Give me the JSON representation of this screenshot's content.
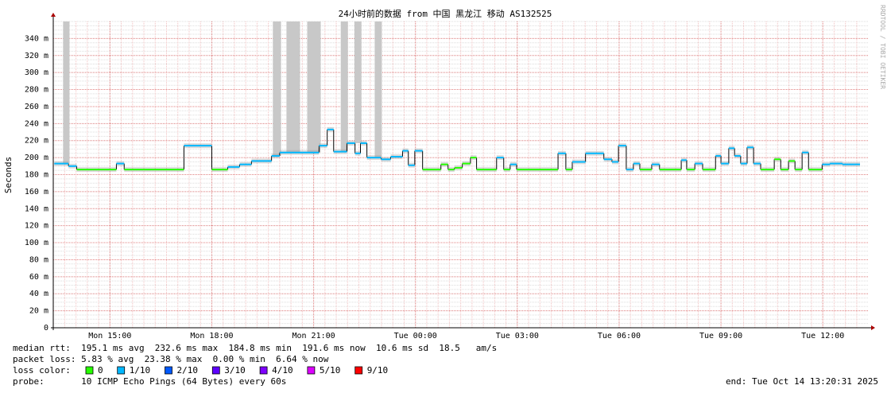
{
  "chart_data": {
    "type": "line",
    "title": "24小时前的数据 from 中国 黑龙江 移动 AS132525",
    "y_label": "Seconds",
    "watermark": "RRDTOOL / TOBI OETIKER",
    "xlim": [
      13.33,
      37.33
    ],
    "xticks": [
      {
        "value": 15,
        "label": "Mon 15:00"
      },
      {
        "value": 18,
        "label": "Mon 18:00"
      },
      {
        "value": 21,
        "label": "Mon 21:00"
      },
      {
        "value": 24,
        "label": "Tue 00:00"
      },
      {
        "value": 27,
        "label": "Tue 03:00"
      },
      {
        "value": 30,
        "label": "Tue 06:00"
      },
      {
        "value": 33,
        "label": "Tue 09:00"
      },
      {
        "value": 36,
        "label": "Tue 12:00"
      }
    ],
    "ylim": [
      0,
      360
    ],
    "yticks": [
      0,
      {
        "value": 20,
        "label": "20 m"
      },
      {
        "value": 40,
        "label": "40 m"
      },
      {
        "value": 60,
        "label": "60 m"
      },
      {
        "value": 80,
        "label": "80 m"
      },
      {
        "value": 100,
        "label": "100 m"
      },
      {
        "value": 120,
        "label": "120 m"
      },
      {
        "value": 140,
        "label": "140 m"
      },
      {
        "value": 160,
        "label": "160 m"
      },
      {
        "value": 180,
        "label": "180 m"
      },
      {
        "value": 200,
        "label": "200 m"
      },
      {
        "value": 220,
        "label": "220 m"
      },
      {
        "value": 240,
        "label": "240 m"
      },
      {
        "value": 260,
        "label": "260 m"
      },
      {
        "value": 280,
        "label": "280 m"
      },
      {
        "value": 300,
        "label": "300 m"
      },
      {
        "value": 320,
        "label": "320 m"
      },
      {
        "value": 340,
        "label": "340 m"
      }
    ],
    "grid": true,
    "x": [
      13.36,
      13.78,
      14.02,
      15.19,
      15.42,
      17.18,
      18.0,
      18.47,
      18.82,
      19.17,
      19.76,
      20.0,
      21.16,
      21.4,
      21.59,
      21.98,
      22.22,
      22.38,
      22.57,
      22.99,
      23.27,
      23.62,
      23.79,
      23.98,
      24.21,
      24.75,
      24.96,
      25.15,
      25.38,
      25.62,
      25.8,
      26.39,
      26.6,
      26.79,
      26.98,
      28.2,
      28.43,
      28.62,
      29.01,
      29.55,
      29.79,
      29.98,
      30.21,
      30.42,
      30.61,
      30.96,
      31.19,
      31.83,
      31.99,
      32.23,
      32.46,
      32.84,
      33.0,
      33.23,
      33.4,
      33.58,
      33.77,
      33.96,
      34.17,
      34.57,
      34.76,
      34.99,
      35.18,
      35.39,
      35.58,
      35.98,
      36.21,
      36.58
    ],
    "series": [
      {
        "name": "median rtt",
        "values": [
          193,
          190,
          186,
          193,
          186,
          214,
          186,
          189,
          192,
          196,
          202,
          206,
          214,
          233,
          207,
          217,
          205,
          217,
          200,
          198,
          201,
          208,
          191,
          208,
          186,
          192,
          186,
          188,
          193,
          200,
          186,
          200,
          186,
          192,
          186,
          205,
          186,
          195,
          205,
          198,
          195,
          214,
          186,
          193,
          186,
          192,
          186,
          197,
          186,
          193,
          186,
          202,
          193,
          211,
          202,
          193,
          212,
          193,
          186,
          198,
          186,
          196,
          186,
          206,
          186,
          192,
          193,
          192
        ],
        "loss": [
          1,
          1,
          0,
          1,
          0,
          1,
          0,
          1,
          1,
          1,
          1,
          1,
          1,
          1,
          1,
          1,
          1,
          1,
          1,
          1,
          1,
          1,
          1,
          1,
          0,
          0,
          0,
          0,
          0,
          0,
          0,
          1,
          0,
          1,
          0,
          1,
          0,
          1,
          1,
          1,
          1,
          1,
          1,
          1,
          0,
          1,
          0,
          1,
          0,
          1,
          0,
          1,
          1,
          1,
          1,
          1,
          1,
          1,
          0,
          0,
          0,
          0,
          0,
          1,
          0,
          1,
          1,
          1
        ]
      }
    ],
    "smoke_spikes": {
      "x0": [
        13.62,
        19.8,
        20.2,
        20.81,
        21.8,
        22.2,
        22.8
      ],
      "x1": [
        13.81,
        20.04,
        20.6,
        21.21,
        22.01,
        22.41,
        23.01
      ]
    },
    "stats": [
      "median rtt:  195.1 ms avg  232.6 ms max  184.8 ms min  191.6 ms now  10.6 ms sd  18.5   am/s",
      "packet loss: 5.83 % avg  23.38 % max  0.00 % min  6.64 % now"
    ],
    "legend_title": "loss color:",
    "legend": [
      {
        "label": "0",
        "color": "#26ff00"
      },
      {
        "label": "1/10",
        "color": "#00b8ff"
      },
      {
        "label": "2/10",
        "color": "#0059ff"
      },
      {
        "label": "3/10",
        "color": "#5e00ff"
      },
      {
        "label": "4/10",
        "color": "#7e00ff"
      },
      {
        "label": "5/10",
        "color": "#dd00ff"
      },
      {
        "label": "9/10",
        "color": "#ff0000"
      }
    ],
    "probe": "probe:       10 ICMP Echo Pings (64 Bytes) every 60s",
    "end": "end: Tue Oct 14 13:20:31 2025"
  }
}
